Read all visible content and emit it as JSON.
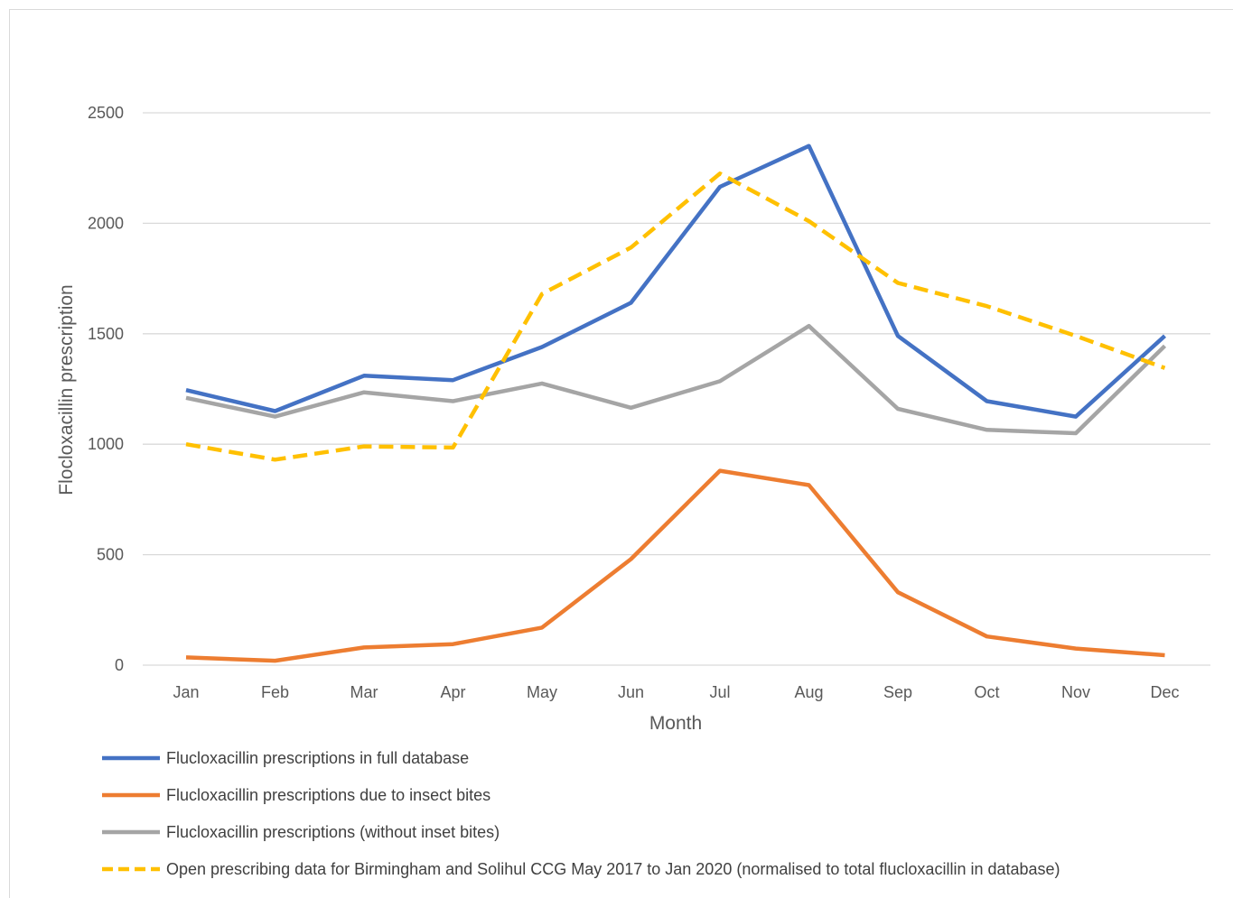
{
  "chart_data": {
    "type": "line",
    "title": "",
    "xlabel": "Month",
    "ylabel": "Flocloxacillin prescription",
    "categories": [
      "Jan",
      "Feb",
      "Mar",
      "Apr",
      "May",
      "Jun",
      "Jul",
      "Aug",
      "Sep",
      "Oct",
      "Nov",
      "Dec"
    ],
    "ylim": [
      0,
      2500
    ],
    "yticks": [
      0,
      500,
      1000,
      1500,
      2000,
      2500
    ],
    "ytick_labels": [
      "0",
      "500",
      "1000",
      "1500",
      "2000",
      "2500"
    ],
    "grid": true,
    "legend_position": "bottom",
    "series": [
      {
        "name": "Flucloxacillin prescriptions in full database",
        "color": "#4472C4",
        "style": "solid",
        "values": [
          1245,
          1150,
          1310,
          1290,
          1440,
          1640,
          2165,
          2350,
          1490,
          1195,
          1125,
          1490
        ]
      },
      {
        "name": "Flucloxacillin prescriptions due to insect bites",
        "color": "#ED7D31",
        "style": "solid",
        "values": [
          35,
          20,
          80,
          95,
          170,
          480,
          880,
          815,
          330,
          130,
          75,
          45
        ]
      },
      {
        "name": "Flucloxacillin prescriptions (without inset bites)",
        "color": "#A5A5A5",
        "style": "solid",
        "values": [
          1210,
          1125,
          1235,
          1195,
          1275,
          1165,
          1285,
          1535,
          1160,
          1065,
          1050,
          1445
        ]
      },
      {
        "name": "Open prescribing data for Birmingham and Solihul CCG May 2017 to Jan 2020 (normalised to total flucloxacillin in database)",
        "color": "#FFC000",
        "style": "dashed",
        "values": [
          1000,
          930,
          990,
          985,
          1680,
          1890,
          2225,
          2010,
          1730,
          1625,
          1490,
          1345
        ]
      }
    ]
  }
}
